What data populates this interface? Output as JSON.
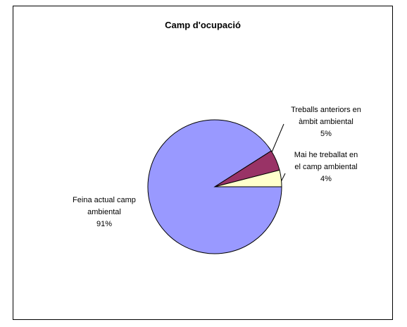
{
  "chart_data": {
    "type": "pie",
    "title": "Camp d'ocupació",
    "categories": [
      "Feina actual camp ambiental",
      "Treballs anteriors en àmbit ambiental",
      "Mai he treballat en el camp ambiental"
    ],
    "values": [
      91,
      5,
      4
    ],
    "value_labels": [
      "91%",
      "5%",
      "4%"
    ],
    "colors": [
      "#9999ff",
      "#993366",
      "#ffffcc"
    ]
  }
}
